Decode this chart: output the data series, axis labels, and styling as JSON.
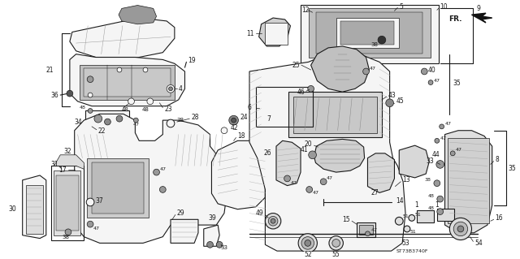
{
  "bg_color": "#ffffff",
  "fig_width": 6.4,
  "fig_height": 3.19,
  "dpi": 100,
  "lc": "#1a1a1a",
  "lw_main": 0.8,
  "lw_thin": 0.5,
  "lw_hair": 0.35,
  "fc_part": "#e8e8e8",
  "fc_dark": "#c0c0c0",
  "fc_white": "#f5f5f5"
}
